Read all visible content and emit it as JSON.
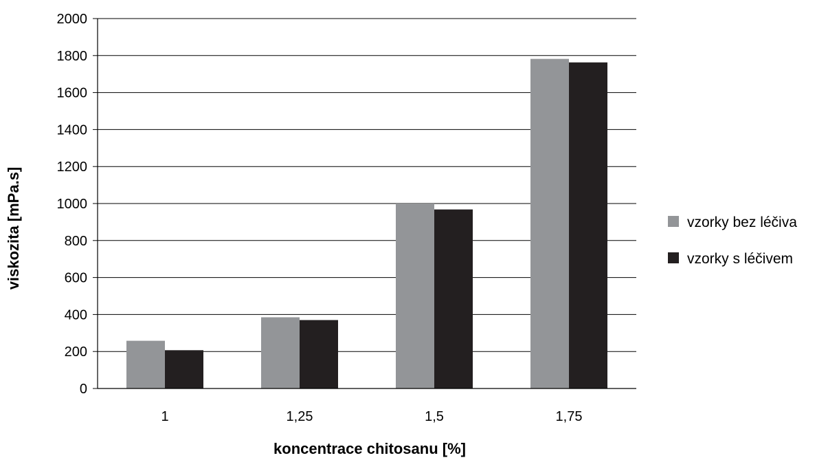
{
  "chart_data": {
    "type": "bar",
    "categories": [
      "1",
      "1,25",
      "1,5",
      "1,75"
    ],
    "series": [
      {
        "name": "vzorky bez léčiva",
        "color": "#939598",
        "values": [
          258,
          385,
          1000,
          1782
        ]
      },
      {
        "name": "vzorky s léčivem",
        "color": "#231f20",
        "values": [
          207,
          370,
          968,
          1763
        ]
      }
    ],
    "xlabel": "koncentrace chitosanu [%]",
    "ylabel": "viskozita [mPa.s]",
    "ylim": [
      0,
      2000
    ],
    "yticks": [
      "0",
      "200",
      "400",
      "600",
      "800",
      "1000",
      "1200",
      "1400",
      "1600",
      "1800",
      "2000"
    ],
    "grid": true,
    "legend_position": "right"
  }
}
